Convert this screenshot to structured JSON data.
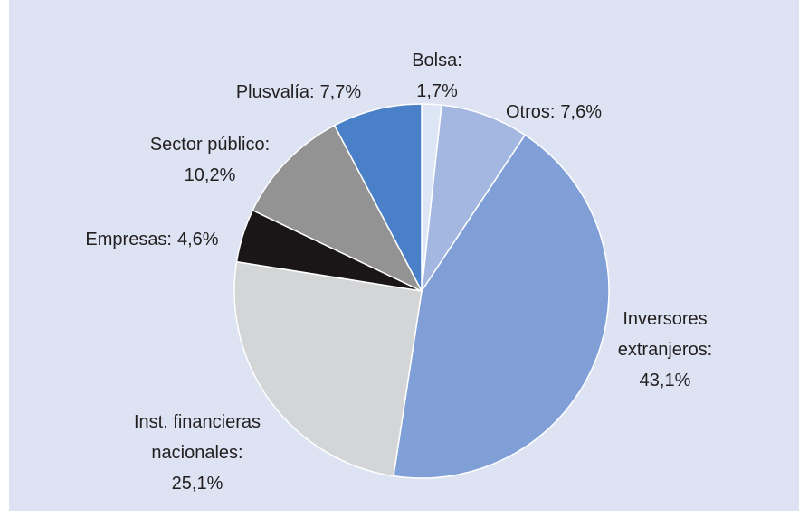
{
  "chart_data": {
    "type": "pie",
    "categories": [
      "Bolsa:",
      "Otros:",
      "Inversores extranjeros:",
      "Inst. financieras nacionales:",
      "Empresas:",
      "Sector público:",
      "Plusvalía:"
    ],
    "values": [
      1.7,
      7.6,
      43.1,
      25.1,
      4.6,
      10.2,
      7.7
    ],
    "value_labels": [
      "1,7%",
      "7,6%",
      "43,1%",
      "25,1%",
      "4,6%",
      "10,2%",
      "7,7%"
    ],
    "colors": [
      "#dde6f5",
      "#a3b7e0",
      "#7f9fd6",
      "#d4d5d7",
      "#1a1617",
      "#939393",
      "#4a80c7"
    ]
  }
}
